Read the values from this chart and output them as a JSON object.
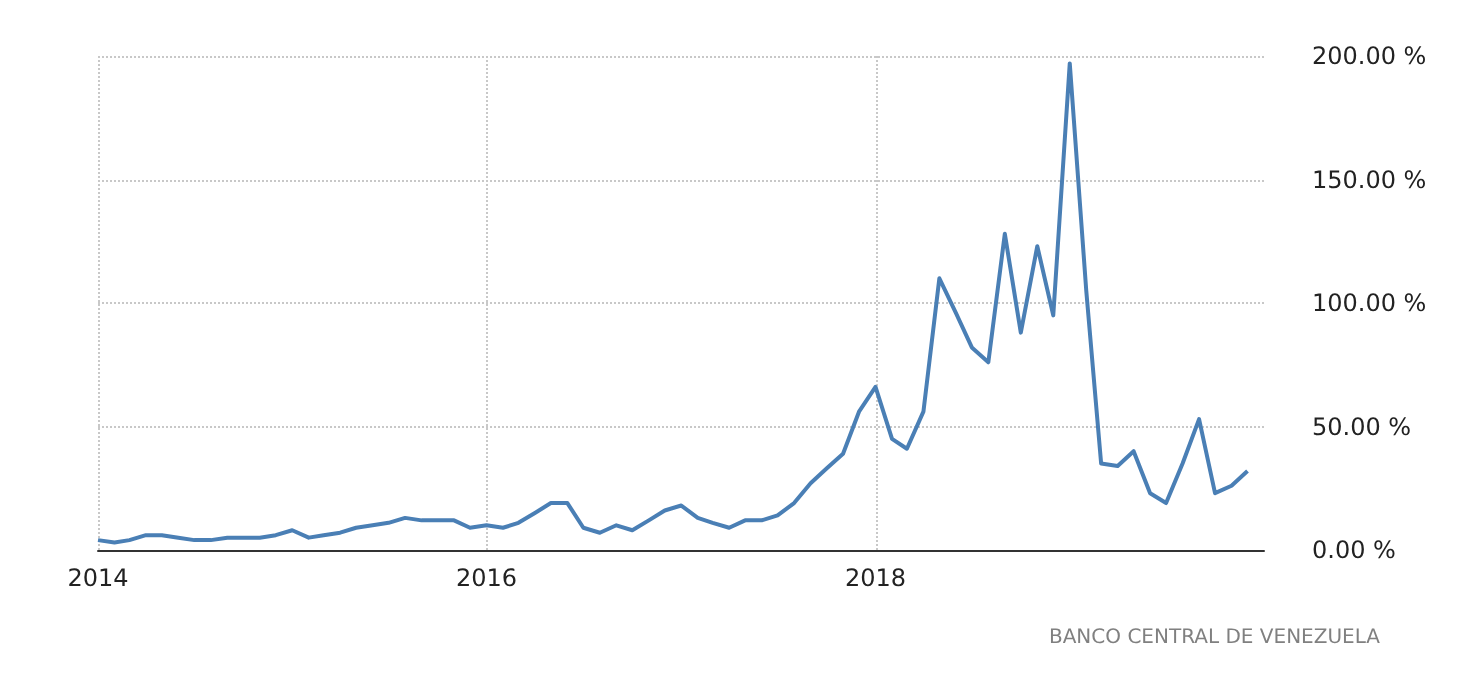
{
  "chart_data": {
    "type": "line",
    "x": [
      "2014-01",
      "2014-02",
      "2014-03",
      "2014-04",
      "2014-05",
      "2014-06",
      "2014-07",
      "2014-08",
      "2014-09",
      "2014-10",
      "2014-11",
      "2014-12",
      "2015-01",
      "2015-02",
      "2015-03",
      "2015-04",
      "2015-05",
      "2015-06",
      "2015-07",
      "2015-08",
      "2015-09",
      "2015-10",
      "2015-11",
      "2015-12",
      "2016-01",
      "2016-02",
      "2016-03",
      "2016-04",
      "2016-05",
      "2016-06",
      "2016-07",
      "2016-08",
      "2016-09",
      "2016-10",
      "2016-11",
      "2016-12",
      "2017-01",
      "2017-02",
      "2017-03",
      "2017-04",
      "2017-05",
      "2017-06",
      "2017-07",
      "2017-08",
      "2017-09",
      "2017-10",
      "2017-11",
      "2017-12",
      "2018-01",
      "2018-02",
      "2018-03",
      "2018-04",
      "2018-05",
      "2018-06",
      "2018-07",
      "2018-08",
      "2018-09",
      "2018-10",
      "2018-11",
      "2018-12",
      "2019-01",
      "2019-02",
      "2019-03",
      "2019-04",
      "2019-05",
      "2019-06",
      "2019-07",
      "2019-08",
      "2019-09",
      "2019-10",
      "2019-11",
      "2019-12"
    ],
    "series": [
      {
        "color": "#4a7fb5",
        "values": [
          4,
          3,
          4,
          6,
          6,
          5,
          4,
          4,
          5,
          5,
          5,
          6,
          8,
          5,
          6,
          7,
          9,
          10,
          11,
          13,
          12,
          12,
          12,
          9,
          10,
          9,
          11,
          15,
          19,
          19,
          9,
          7,
          10,
          8,
          12,
          16,
          18,
          13,
          11,
          9,
          12,
          12,
          14,
          19,
          27,
          33,
          39,
          56,
          66,
          45,
          41,
          56,
          110,
          96,
          82,
          76,
          128,
          88,
          123,
          95,
          197,
          105,
          35,
          34,
          40,
          23,
          19,
          35,
          53,
          23,
          26,
          32
        ]
      }
    ],
    "xlim": [
      "2014-01",
      "2020-01"
    ],
    "xticks": [
      {
        "value": "2014-01",
        "label": "2014"
      },
      {
        "value": "2016-01",
        "label": "2016"
      },
      {
        "value": "2018-01",
        "label": "2018"
      }
    ],
    "ylim": [
      0,
      200
    ],
    "yticks": [
      {
        "value": 0,
        "label": "0.00 %"
      },
      {
        "value": 50,
        "label": "50.00 %"
      },
      {
        "value": 100,
        "label": "100.00 %"
      },
      {
        "value": 150,
        "label": "150.00 %"
      },
      {
        "value": 200,
        "label": "200.00 %"
      }
    ],
    "grid": true,
    "marker": "none",
    "line_style": "solid",
    "annotations": [
      "BANCO CENTRAL DE VENEZUELA"
    ]
  }
}
